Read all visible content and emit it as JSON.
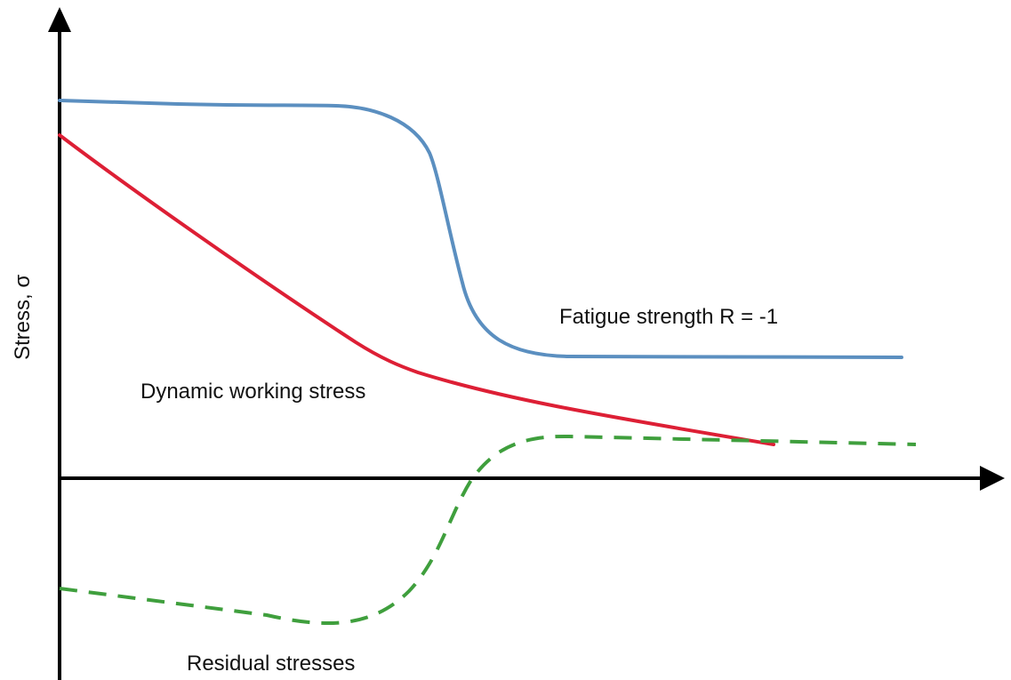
{
  "diagram": {
    "y_axis_label": "Stress, σ",
    "curves": {
      "fatigue": {
        "label": "Fatigue strength R = -1",
        "color": "#5b8fc0",
        "style": "solid"
      },
      "working": {
        "label": "Dynamic working stress",
        "color": "#dd1f35",
        "style": "solid"
      },
      "residual": {
        "label": "Residual stresses",
        "color": "#3f9f3d",
        "style": "dashed"
      }
    },
    "axis_color": "#000000"
  }
}
